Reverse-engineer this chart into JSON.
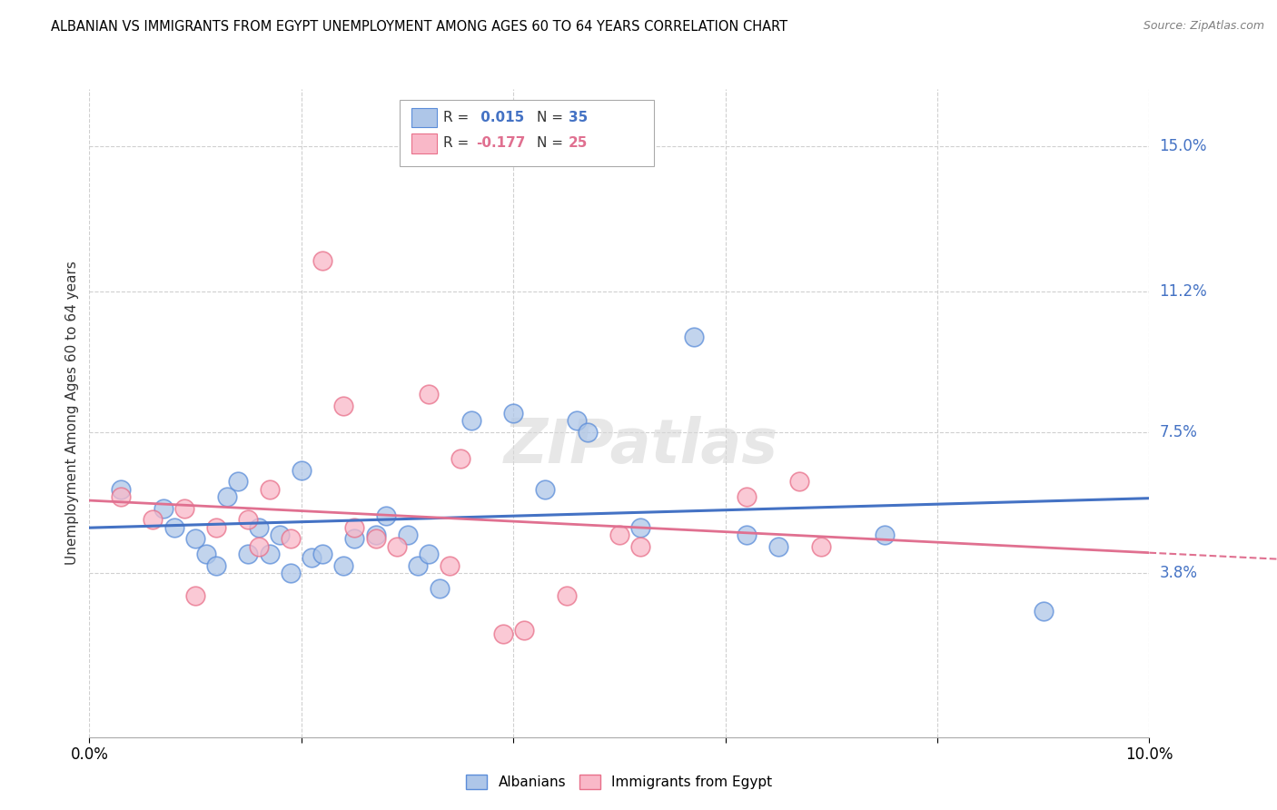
{
  "title": "ALBANIAN VS IMMIGRANTS FROM EGYPT UNEMPLOYMENT AMONG AGES 60 TO 64 YEARS CORRELATION CHART",
  "source": "Source: ZipAtlas.com",
  "ylabel": "Unemployment Among Ages 60 to 64 years",
  "xlim": [
    0.0,
    0.1
  ],
  "ylim": [
    -0.005,
    0.165
  ],
  "ytick_positions": [
    0.038,
    0.075,
    0.112,
    0.15
  ],
  "ytick_labels": [
    "3.8%",
    "7.5%",
    "11.2%",
    "15.0%"
  ],
  "blue_color": "#aec6e8",
  "pink_color": "#f9b8c8",
  "blue_edge_color": "#5b8dd9",
  "pink_edge_color": "#e8708a",
  "blue_line_color": "#4472c4",
  "pink_line_color": "#e07090",
  "blue_scatter": [
    [
      0.003,
      0.06
    ],
    [
      0.007,
      0.055
    ],
    [
      0.008,
      0.05
    ],
    [
      0.01,
      0.047
    ],
    [
      0.011,
      0.043
    ],
    [
      0.012,
      0.04
    ],
    [
      0.013,
      0.058
    ],
    [
      0.014,
      0.062
    ],
    [
      0.015,
      0.043
    ],
    [
      0.016,
      0.05
    ],
    [
      0.017,
      0.043
    ],
    [
      0.018,
      0.048
    ],
    [
      0.019,
      0.038
    ],
    [
      0.02,
      0.065
    ],
    [
      0.021,
      0.042
    ],
    [
      0.022,
      0.043
    ],
    [
      0.024,
      0.04
    ],
    [
      0.025,
      0.047
    ],
    [
      0.027,
      0.048
    ],
    [
      0.028,
      0.053
    ],
    [
      0.03,
      0.048
    ],
    [
      0.031,
      0.04
    ],
    [
      0.032,
      0.043
    ],
    [
      0.033,
      0.034
    ],
    [
      0.036,
      0.078
    ],
    [
      0.04,
      0.08
    ],
    [
      0.043,
      0.06
    ],
    [
      0.046,
      0.078
    ],
    [
      0.047,
      0.075
    ],
    [
      0.052,
      0.05
    ],
    [
      0.057,
      0.1
    ],
    [
      0.062,
      0.048
    ],
    [
      0.065,
      0.045
    ],
    [
      0.075,
      0.048
    ],
    [
      0.09,
      0.028
    ]
  ],
  "pink_scatter": [
    [
      0.003,
      0.058
    ],
    [
      0.006,
      0.052
    ],
    [
      0.009,
      0.055
    ],
    [
      0.01,
      0.032
    ],
    [
      0.012,
      0.05
    ],
    [
      0.015,
      0.052
    ],
    [
      0.016,
      0.045
    ],
    [
      0.017,
      0.06
    ],
    [
      0.019,
      0.047
    ],
    [
      0.022,
      0.12
    ],
    [
      0.024,
      0.082
    ],
    [
      0.025,
      0.05
    ],
    [
      0.027,
      0.047
    ],
    [
      0.029,
      0.045
    ],
    [
      0.032,
      0.085
    ],
    [
      0.034,
      0.04
    ],
    [
      0.035,
      0.068
    ],
    [
      0.039,
      0.022
    ],
    [
      0.041,
      0.023
    ],
    [
      0.045,
      0.032
    ],
    [
      0.05,
      0.048
    ],
    [
      0.052,
      0.045
    ],
    [
      0.062,
      0.058
    ],
    [
      0.067,
      0.062
    ],
    [
      0.069,
      0.045
    ]
  ],
  "watermark_text": "ZIPatlas",
  "grid_color": "#d0d0d0"
}
